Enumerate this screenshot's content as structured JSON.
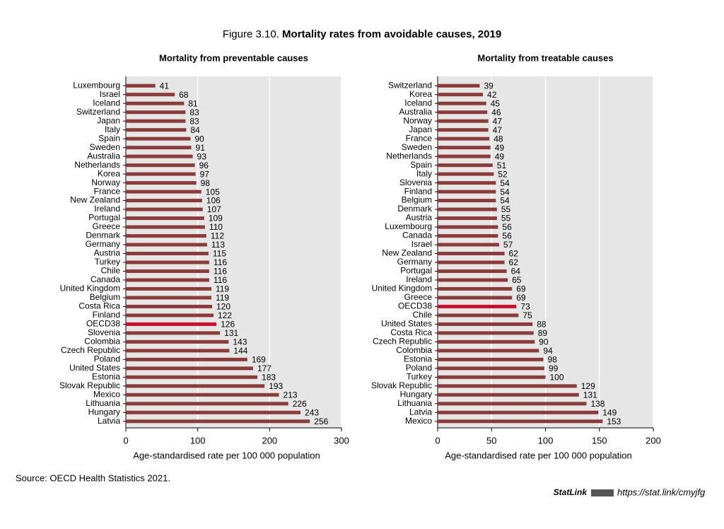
{
  "figure": {
    "label": "Figure 3.10.",
    "title": "Mortality rates from avoidable causes, 2019"
  },
  "source": "Source: OECD Health Statistics 2021.",
  "statlink": {
    "name": "StatLink",
    "url": "https://stat.link/cmyjfg"
  },
  "chart_data": [
    {
      "type": "bar",
      "orientation": "horizontal",
      "title": "Mortality from preventable causes",
      "x_label": "Age-standardised rate per 100 000 population",
      "categories": [
        "Luxembourg",
        "Israel",
        "Iceland",
        "Switzerland",
        "Japan",
        "Italy",
        "Spain",
        "Sweden",
        "Australia",
        "Netherlands",
        "Korea",
        "Norway",
        "France",
        "New Zealand",
        "Ireland",
        "Portugal",
        "Greece",
        "Denmark",
        "Germany",
        "Austria",
        "Turkey",
        "Chile",
        "Canada",
        "United Kingdom",
        "Belgium",
        "Costa Rica",
        "Finland",
        "OECD38",
        "Slovenia",
        "Colombia",
        "Czech Republic",
        "Poland",
        "United States",
        "Estonia",
        "Slovak Republic",
        "Mexico",
        "Lithuania",
        "Hungary",
        "Latvia"
      ],
      "values": [
        41,
        68,
        81,
        83,
        83,
        84,
        90,
        91,
        93,
        96,
        97,
        98,
        105,
        106,
        107,
        109,
        110,
        112,
        113,
        115,
        116,
        116,
        116,
        119,
        119,
        120,
        122,
        126,
        131,
        143,
        144,
        169,
        177,
        183,
        193,
        213,
        226,
        243,
        256
      ],
      "colors": [
        "#8c3b3b",
        "#8c3b3b",
        "#8c3b3b",
        "#8c3b3b",
        "#8c3b3b",
        "#8c3b3b",
        "#8c3b3b",
        "#8c3b3b",
        "#8c3b3b",
        "#8c3b3b",
        "#8c3b3b",
        "#8c3b3b",
        "#8c3b3b",
        "#8c3b3b",
        "#8c3b3b",
        "#8c3b3b",
        "#8c3b3b",
        "#8c3b3b",
        "#8c3b3b",
        "#8c3b3b",
        "#8c3b3b",
        "#8c3b3b",
        "#8c3b3b",
        "#8c3b3b",
        "#8c3b3b",
        "#8c3b3b",
        "#8c3b3b",
        "#c8102e",
        "#8c3b3b",
        "#8c3b3b",
        "#8c3b3b",
        "#8c3b3b",
        "#8c3b3b",
        "#8c3b3b",
        "#8c3b3b",
        "#8c3b3b",
        "#8c3b3b",
        "#8c3b3b",
        "#8c3b3b"
      ],
      "xlim": [
        0,
        300
      ],
      "xticks": [
        0,
        100,
        200,
        300
      ],
      "grid": true
    },
    {
      "type": "bar",
      "orientation": "horizontal",
      "title": "Mortality from treatable causes",
      "x_label": "Age-standardised rate per 100 000 population",
      "categories": [
        "Switzerland",
        "Korea",
        "Iceland",
        "Australia",
        "Norway",
        "Japan",
        "France",
        "Sweden",
        "Netherlands",
        "Spain",
        "Italy",
        "Slovenia",
        "Finland",
        "Belgium",
        "Denmark",
        "Austria",
        "Luxembourg",
        "Canada",
        "Israel",
        "New Zealand",
        "Germany",
        "Portugal",
        "Ireland",
        "United Kingdom",
        "Greece",
        "OECD38",
        "Chile",
        "United States",
        "Costa Rica",
        "Czech Republic",
        "Colombia",
        "Estonia",
        "Poland",
        "Turkey",
        "Slovak Republic",
        "Hungary",
        "Lithuania",
        "Latvia",
        "Mexico"
      ],
      "values": [
        39,
        42,
        45,
        46,
        47,
        47,
        48,
        49,
        49,
        51,
        52,
        54,
        54,
        54,
        55,
        55,
        56,
        56,
        57,
        62,
        62,
        64,
        65,
        69,
        69,
        73,
        75,
        88,
        89,
        90,
        94,
        98,
        99,
        100,
        129,
        131,
        138,
        149,
        153
      ],
      "colors": [
        "#8c3b3b",
        "#8c3b3b",
        "#8c3b3b",
        "#8c3b3b",
        "#8c3b3b",
        "#8c3b3b",
        "#8c3b3b",
        "#8c3b3b",
        "#8c3b3b",
        "#8c3b3b",
        "#8c3b3b",
        "#8c3b3b",
        "#8c3b3b",
        "#8c3b3b",
        "#8c3b3b",
        "#8c3b3b",
        "#8c3b3b",
        "#8c3b3b",
        "#8c3b3b",
        "#8c3b3b",
        "#8c3b3b",
        "#8c3b3b",
        "#8c3b3b",
        "#8c3b3b",
        "#8c3b3b",
        "#c8102e",
        "#8c3b3b",
        "#8c3b3b",
        "#8c3b3b",
        "#8c3b3b",
        "#8c3b3b",
        "#8c3b3b",
        "#8c3b3b",
        "#8c3b3b",
        "#8c3b3b",
        "#8c3b3b",
        "#8c3b3b",
        "#8c3b3b",
        "#8c3b3b"
      ],
      "xlim": [
        0,
        200
      ],
      "xticks": [
        0,
        50,
        100,
        150,
        200
      ],
      "grid": true
    }
  ]
}
